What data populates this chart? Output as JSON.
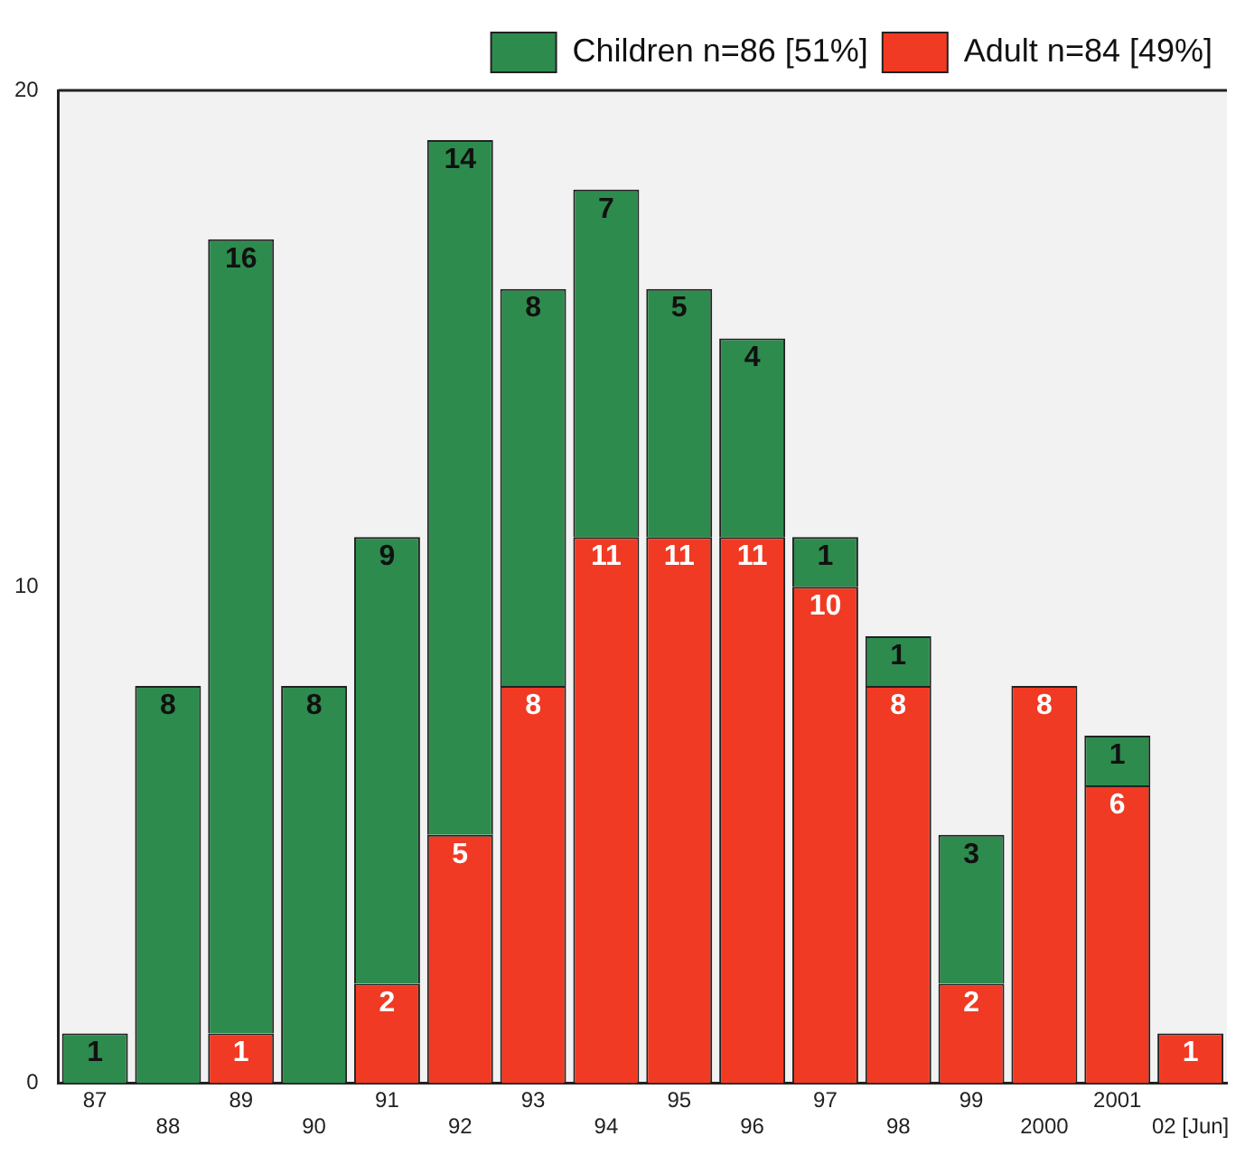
{
  "chart_data": {
    "type": "bar",
    "stacked": true,
    "categories": [
      "87",
      "88",
      "89",
      "90",
      "91",
      "92",
      "93",
      "94",
      "95",
      "96",
      "97",
      "98",
      "99",
      "2000",
      "2001",
      "02 [Jun]"
    ],
    "series": [
      {
        "name": "Adult n=84 [49%]",
        "color": "#f03a24",
        "values": [
          0,
          0,
          1,
          0,
          2,
          5,
          8,
          11,
          11,
          11,
          10,
          8,
          2,
          8,
          6,
          1
        ],
        "value_labels": [
          null,
          null,
          "1",
          null,
          "2",
          "5",
          "8",
          "11",
          "11",
          "11",
          "10",
          "8",
          "2",
          "8",
          "6",
          "1"
        ]
      },
      {
        "name": "Children n=86 [51%]",
        "color": "#2e8b4e",
        "values": [
          1,
          8,
          16,
          8,
          9,
          14,
          8,
          7,
          5,
          4,
          1,
          1,
          3,
          0,
          1,
          0
        ],
        "value_labels": [
          "1",
          "8",
          "16",
          "8",
          "9",
          "14",
          "8",
          "7",
          "5",
          "4",
          "1",
          "1",
          "3",
          null,
          "1",
          null
        ]
      }
    ],
    "ylim": [
      0,
      20
    ],
    "yticks": [
      0,
      10,
      20
    ],
    "grid": false,
    "legend": "top right"
  }
}
